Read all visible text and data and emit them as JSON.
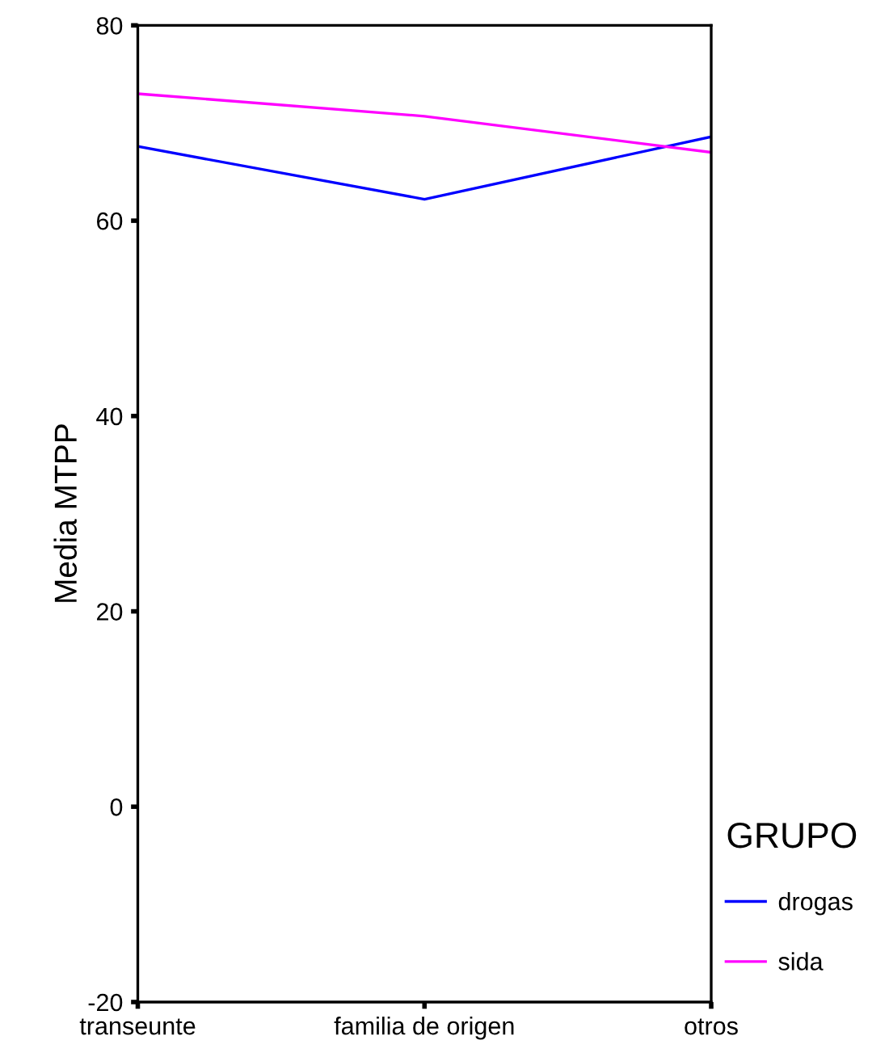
{
  "chart_data": {
    "type": "line",
    "ylabel": "Media MTPP",
    "legend_title": "GRUPO",
    "categories": [
      "transeunte",
      "familia de origen",
      "otros"
    ],
    "series": [
      {
        "name": "drogas",
        "color": "#0000ff",
        "values": [
          67.6,
          62.2,
          68.6
        ]
      },
      {
        "name": "sida",
        "color": "#ff00ff",
        "values": [
          73.0,
          70.7,
          67.0
        ]
      }
    ],
    "ylim": [
      -20,
      80
    ],
    "yticks": [
      -20,
      0,
      20,
      40,
      60,
      80
    ],
    "grid": false,
    "legend": "right",
    "marker": "none",
    "line_style": "solid"
  }
}
